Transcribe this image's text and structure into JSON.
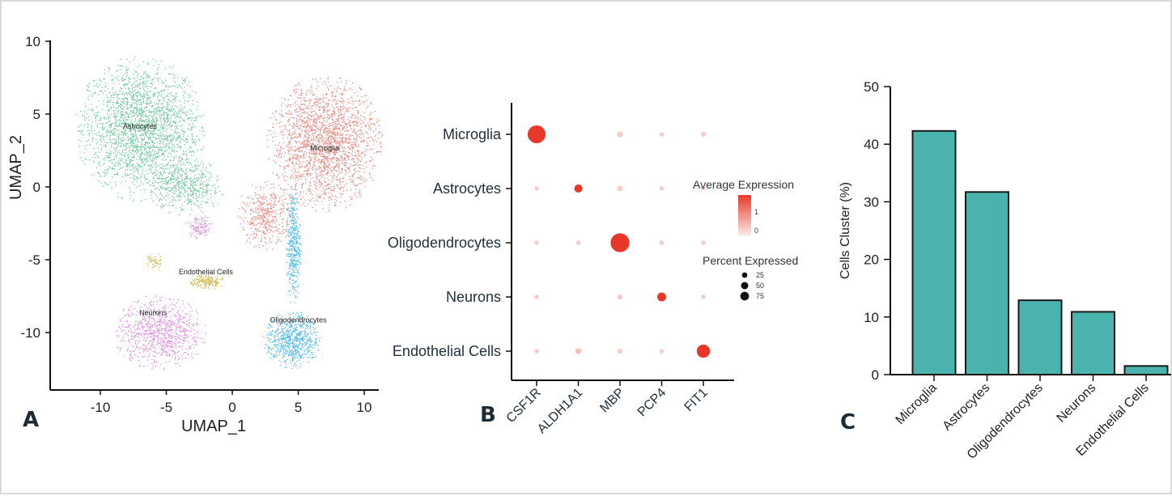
{
  "panels": {
    "A": {
      "label": "A"
    },
    "B": {
      "label": "B"
    },
    "C": {
      "label": "C"
    }
  },
  "chart_data": [
    {
      "type": "scatter",
      "xlabel": "UMAP_1",
      "ylabel": "UMAP_2",
      "xticks": [
        -10,
        -5,
        0,
        5,
        10
      ],
      "yticks": [
        10,
        5,
        0,
        -5,
        -10
      ],
      "xlim": [
        -13,
        13
      ],
      "ylim": [
        -13,
        10
      ],
      "grid": false,
      "clusters": [
        {
          "name": "Astrocytes",
          "label_x": -7,
          "label_y": 4,
          "color": "#5cc08f",
          "regions": [
            {
              "cx": -7,
              "cy": 4,
              "rx": 5,
              "ry": 5,
              "n": 2400
            },
            {
              "cx": -3.5,
              "cy": 0,
              "rx": 3,
              "ry": 2,
              "n": 500
            }
          ]
        },
        {
          "name": "Microglia",
          "label_x": 7,
          "label_y": 2.5,
          "color": "#e07a70",
          "regions": [
            {
              "cx": 7,
              "cy": 3,
              "rx": 4.5,
              "ry": 4.7,
              "n": 2200
            },
            {
              "cx": 2.5,
              "cy": -2,
              "rx": 2.2,
              "ry": 2.5,
              "n": 450
            }
          ]
        },
        {
          "name": "Oligodendrocytes",
          "label_x": 5,
          "label_y": -9.3,
          "color": "#3cb0e0",
          "regions": [
            {
              "cx": 4.5,
              "cy": -10.5,
              "rx": 2.2,
              "ry": 2,
              "n": 700
            },
            {
              "cx": 4.6,
              "cy": -4,
              "rx": 0.6,
              "ry": 4.2,
              "n": 450
            }
          ]
        },
        {
          "name": "Neurons",
          "label_x": -6,
          "label_y": -8.8,
          "color": "#d97ee0",
          "regions": [
            {
              "cx": -5.5,
              "cy": -10,
              "rx": 3.6,
              "ry": 2.6,
              "n": 900
            },
            {
              "cx": -2.5,
              "cy": -2.8,
              "rx": 1.1,
              "ry": 0.9,
              "n": 120
            }
          ]
        },
        {
          "name": "Endothelial Cells",
          "label_x": -2,
          "label_y": -6,
          "color": "#c9b23a",
          "regions": [
            {
              "cx": -2,
              "cy": -6.5,
              "rx": 1.4,
              "ry": 0.6,
              "n": 180
            },
            {
              "cx": -6,
              "cy": -5.2,
              "rx": 0.7,
              "ry": 0.7,
              "n": 50
            }
          ]
        }
      ]
    },
    {
      "type": "dotplot",
      "rows": [
        "Microglia",
        "Astrocytes",
        "Oligodendrocytes",
        "Neurons",
        "Endothelial Cells"
      ],
      "columns": [
        "CSF1R",
        "ALDH1A1",
        "MBP",
        "PCP4",
        "FIT1"
      ],
      "dots": [
        {
          "row": "Microglia",
          "col": "CSF1R",
          "pct": 80,
          "expr": 2
        },
        {
          "row": "Microglia",
          "col": "MBP",
          "pct": 5,
          "expr": -0.5
        },
        {
          "row": "Microglia",
          "col": "PCP4",
          "pct": 2,
          "expr": -0.5
        },
        {
          "row": "Microglia",
          "col": "FIT1",
          "pct": 3,
          "expr": -0.5
        },
        {
          "row": "Astrocytes",
          "col": "CSF1R",
          "pct": 2,
          "expr": -0.5
        },
        {
          "row": "Astrocytes",
          "col": "ALDH1A1",
          "pct": 12,
          "expr": 2
        },
        {
          "row": "Astrocytes",
          "col": "MBP",
          "pct": 4,
          "expr": -0.5
        },
        {
          "row": "Astrocytes",
          "col": "PCP4",
          "pct": 2,
          "expr": -0.5
        },
        {
          "row": "Astrocytes",
          "col": "FIT1",
          "pct": 2,
          "expr": -0.5
        },
        {
          "row": "Oligodendrocytes",
          "col": "CSF1R",
          "pct": 2,
          "expr": -0.5
        },
        {
          "row": "Oligodendrocytes",
          "col": "ALDH1A1",
          "pct": 2,
          "expr": -0.5
        },
        {
          "row": "Oligodendrocytes",
          "col": "MBP",
          "pct": 90,
          "expr": 2
        },
        {
          "row": "Oligodendrocytes",
          "col": "PCP4",
          "pct": 2,
          "expr": -0.5
        },
        {
          "row": "Oligodendrocytes",
          "col": "FIT1",
          "pct": 2,
          "expr": -0.5
        },
        {
          "row": "Neurons",
          "col": "CSF1R",
          "pct": 2,
          "expr": -0.5
        },
        {
          "row": "Neurons",
          "col": "MBP",
          "pct": 3,
          "expr": -0.5
        },
        {
          "row": "Neurons",
          "col": "PCP4",
          "pct": 15,
          "expr": 2
        },
        {
          "row": "Neurons",
          "col": "FIT1",
          "pct": 2,
          "expr": -0.5
        },
        {
          "row": "Endothelial Cells",
          "col": "CSF1R",
          "pct": 2,
          "expr": -0.5
        },
        {
          "row": "Endothelial Cells",
          "col": "ALDH1A1",
          "pct": 5,
          "expr": -0.3
        },
        {
          "row": "Endothelial Cells",
          "col": "MBP",
          "pct": 3,
          "expr": -0.5
        },
        {
          "row": "Endothelial Cells",
          "col": "PCP4",
          "pct": 2,
          "expr": -0.5
        },
        {
          "row": "Endothelial Cells",
          "col": "FIT1",
          "pct": 40,
          "expr": 2
        }
      ],
      "legend": {
        "color_title": "Average Expression",
        "color_ticks": [
          "1",
          "0"
        ],
        "color_low": "#fbe9e5",
        "color_high": "#e8382a",
        "size_title": "Percent Expressed",
        "size_ticks": [
          {
            "label": "25",
            "pct": 25
          },
          {
            "label": "50",
            "pct": 50
          },
          {
            "label": "75",
            "pct": 75
          }
        ]
      }
    },
    {
      "type": "bar",
      "categories": [
        "Microglia",
        "Astrocytes",
        "Oligodendrocytes",
        "Neurons",
        "Endothelial Cells"
      ],
      "values": [
        42.3,
        31.7,
        12.9,
        10.9,
        1.5
      ],
      "ylabel": "Cells Cluster (%)",
      "xlabel": "",
      "ylim": [
        0,
        50
      ],
      "yticks": [
        0,
        10,
        20,
        30,
        40,
        50
      ],
      "bar_color": "#4ab3ae",
      "edge_color": "#1a1a1a"
    }
  ]
}
